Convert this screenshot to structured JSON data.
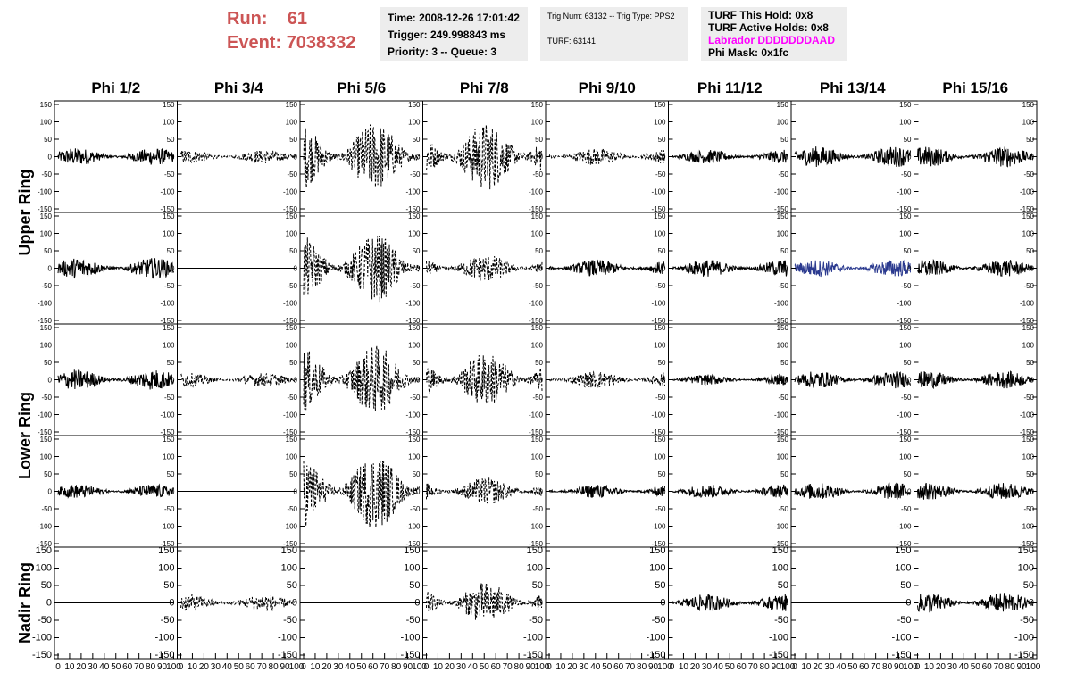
{
  "header": {
    "run_label": "Run:",
    "run_value": "61",
    "event_label": "Event:",
    "event_value": "7038332",
    "time": "Time: 2008-12-26 17:01:42",
    "trigger": "Trigger: 249.998843 ms",
    "priority": "Priority: 3 -- Queue: 3",
    "trig_num": "Trig Num: 63132 -- Trig Type: PPS2",
    "turf": "TURF: 63141",
    "turf_hold": "TURF This Hold: 0x8",
    "turf_active": "TURF Active Holds: 0x8",
    "labrador": "Labrador DDDDDDDAAD",
    "phi_mask": "Phi Mask: 0x1fc"
  },
  "chart_data": {
    "type": "line",
    "columns": [
      "Phi 1/2",
      "Phi 3/4",
      "Phi 5/6",
      "Phi 7/8",
      "Phi 9/10",
      "Phi 11/12",
      "Phi 13/14",
      "Phi 15/16"
    ],
    "row_labels": [
      "Upper Ring",
      "Lower Ring",
      "Nadir Ring"
    ],
    "xlim": [
      0,
      100
    ],
    "ylim": [
      -150,
      150
    ],
    "x_tick_labels": [
      "0",
      "10",
      "20",
      "30",
      "40",
      "50",
      "60",
      "70",
      "80",
      "90",
      "100"
    ],
    "y_tick_labels": [
      "150",
      "100",
      "50",
      "0",
      "-50",
      "-100",
      "-150"
    ],
    "panels": [
      {
        "row": 0,
        "col": 0,
        "style": "solid",
        "color": "#000000",
        "amplitude": 25
      },
      {
        "row": 0,
        "col": 1,
        "style": "dashed",
        "color": "#000000",
        "amplitude": 20
      },
      {
        "row": 0,
        "col": 2,
        "style": "dashed",
        "color": "#000000",
        "amplitude": 100
      },
      {
        "row": 0,
        "col": 3,
        "style": "dashed",
        "color": "#000000",
        "amplitude": 100
      },
      {
        "row": 0,
        "col": 4,
        "style": "dashed",
        "color": "#000000",
        "amplitude": 25
      },
      {
        "row": 0,
        "col": 5,
        "style": "solid",
        "color": "#000000",
        "amplitude": 20
      },
      {
        "row": 0,
        "col": 6,
        "style": "solid",
        "color": "#000000",
        "amplitude": 30
      },
      {
        "row": 0,
        "col": 7,
        "style": "solid",
        "color": "#000000",
        "amplitude": 30
      },
      {
        "row": 1,
        "col": 0,
        "style": "solid",
        "color": "#000000",
        "amplitude": 30
      },
      {
        "row": 1,
        "col": 1,
        "style": "flat",
        "color": "#000000",
        "amplitude": 0
      },
      {
        "row": 1,
        "col": 2,
        "style": "dashed",
        "color": "#000000",
        "amplitude": 100
      },
      {
        "row": 1,
        "col": 3,
        "style": "dashed",
        "color": "#000000",
        "amplitude": 40
      },
      {
        "row": 1,
        "col": 4,
        "style": "solid",
        "color": "#000000",
        "amplitude": 25
      },
      {
        "row": 1,
        "col": 5,
        "style": "solid",
        "color": "#000000",
        "amplitude": 25
      },
      {
        "row": 1,
        "col": 6,
        "style": "solid",
        "color": "#2b3a8f",
        "amplitude": 25
      },
      {
        "row": 1,
        "col": 7,
        "style": "solid",
        "color": "#000000",
        "amplitude": 25
      },
      {
        "row": 2,
        "col": 0,
        "style": "solid",
        "color": "#000000",
        "amplitude": 30
      },
      {
        "row": 2,
        "col": 1,
        "style": "dashed",
        "color": "#000000",
        "amplitude": 20
      },
      {
        "row": 2,
        "col": 2,
        "style": "dashed",
        "color": "#000000",
        "amplitude": 100
      },
      {
        "row": 2,
        "col": 3,
        "style": "dashed",
        "color": "#000000",
        "amplitude": 80
      },
      {
        "row": 2,
        "col": 4,
        "style": "dashed",
        "color": "#000000",
        "amplitude": 25
      },
      {
        "row": 2,
        "col": 5,
        "style": "solid",
        "color": "#000000",
        "amplitude": 15
      },
      {
        "row": 2,
        "col": 6,
        "style": "solid",
        "color": "#000000",
        "amplitude": 25
      },
      {
        "row": 2,
        "col": 7,
        "style": "solid",
        "color": "#000000",
        "amplitude": 25
      },
      {
        "row": 3,
        "col": 0,
        "style": "solid",
        "color": "#000000",
        "amplitude": 20
      },
      {
        "row": 3,
        "col": 1,
        "style": "flat",
        "color": "#000000",
        "amplitude": 0
      },
      {
        "row": 3,
        "col": 2,
        "style": "dashed",
        "color": "#000000",
        "amplitude": 110
      },
      {
        "row": 3,
        "col": 3,
        "style": "dashed",
        "color": "#000000",
        "amplitude": 40
      },
      {
        "row": 3,
        "col": 4,
        "style": "solid",
        "color": "#000000",
        "amplitude": 20
      },
      {
        "row": 3,
        "col": 5,
        "style": "solid",
        "color": "#000000",
        "amplitude": 20
      },
      {
        "row": 3,
        "col": 6,
        "style": "solid",
        "color": "#000000",
        "amplitude": 25
      },
      {
        "row": 3,
        "col": 7,
        "style": "solid",
        "color": "#000000",
        "amplitude": 25
      },
      {
        "row": 4,
        "col": 0,
        "style": "flat",
        "color": "#000000",
        "amplitude": 0
      },
      {
        "row": 4,
        "col": 1,
        "style": "dashed",
        "color": "#000000",
        "amplitude": 25
      },
      {
        "row": 4,
        "col": 2,
        "style": "flat",
        "color": "#000000",
        "amplitude": 0
      },
      {
        "row": 4,
        "col": 3,
        "style": "dashed",
        "color": "#000000",
        "amplitude": 60
      },
      {
        "row": 4,
        "col": 4,
        "style": "flat",
        "color": "#000000",
        "amplitude": 0
      },
      {
        "row": 4,
        "col": 5,
        "style": "solid",
        "color": "#000000",
        "amplitude": 25
      },
      {
        "row": 4,
        "col": 6,
        "style": "flat",
        "color": "#000000",
        "amplitude": 0
      },
      {
        "row": 4,
        "col": 7,
        "style": "solid",
        "color": "#000000",
        "amplitude": 30
      }
    ]
  }
}
